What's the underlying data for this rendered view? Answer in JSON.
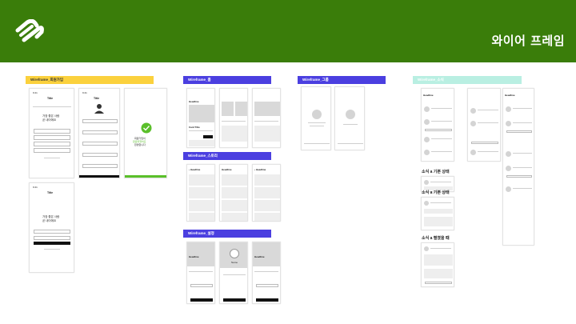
{
  "header": {
    "title": "와이어 프레임",
    "logo_icon": "chain-link-logo"
  },
  "sections": {
    "signup": "Wireframe_회원가입",
    "home": "Wireframe_홈",
    "club": "Wireframe_그룹",
    "story": "Wireframe_스토리",
    "settings": "Wireframe_설정",
    "news": "Wireframe_소식"
  },
  "news_labels": {
    "basic": "소식 a 기본 상태",
    "basic2": "소식 a 기본 상태",
    "expanded": "소식 a 펼쳤을 때"
  },
  "colors": {
    "header_bg": "#3a7d0a",
    "label_yellow": "#fbd13d",
    "label_blue": "#4b3fe0",
    "label_mint": "#b9efe2",
    "accent_green": "#5abf2a"
  }
}
